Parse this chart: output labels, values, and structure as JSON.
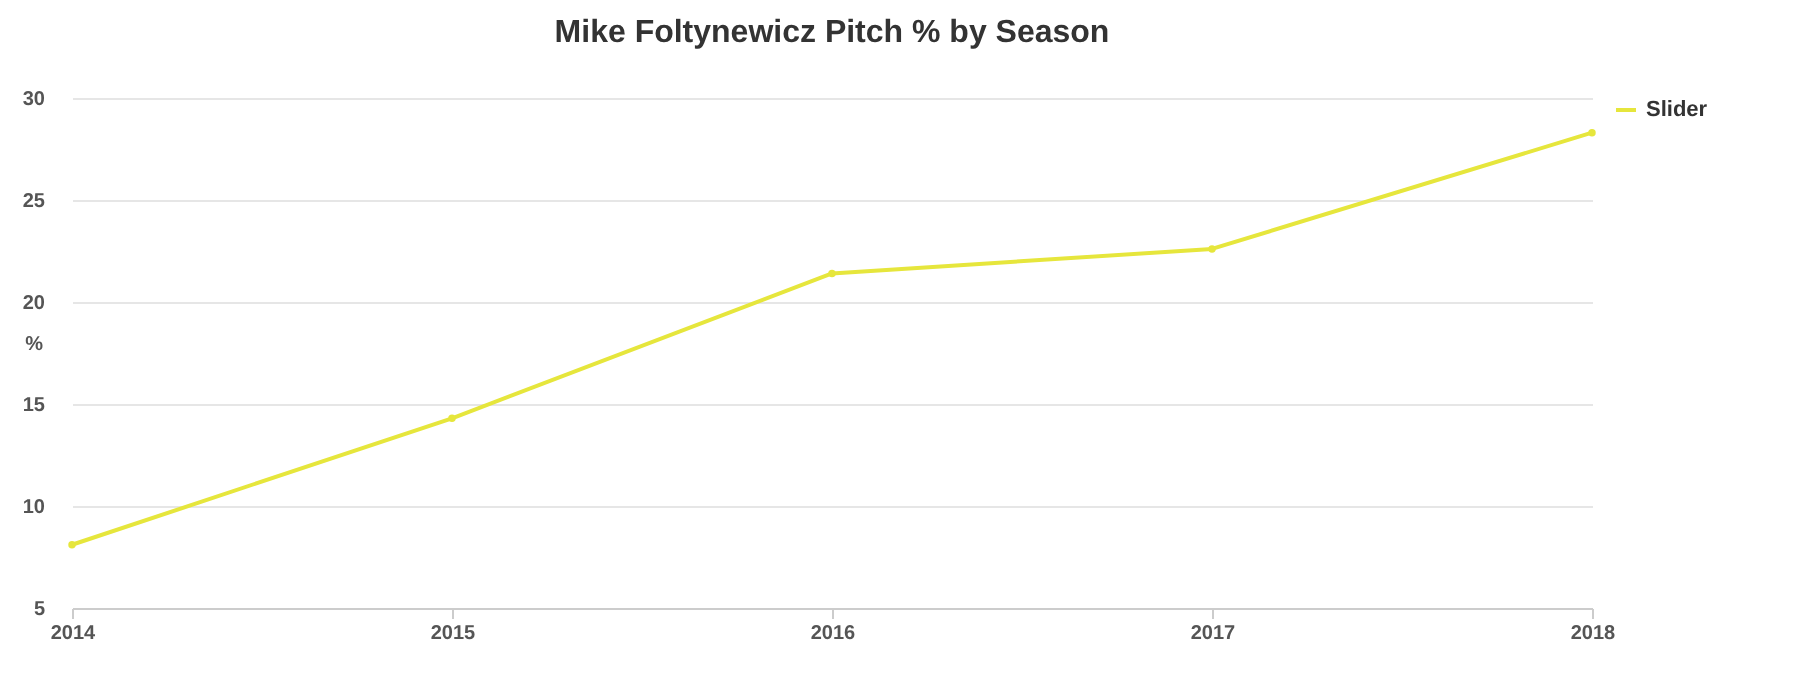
{
  "chart_data": {
    "type": "line",
    "title": "Mike Foltynewicz Pitch % by Season",
    "ylabel": "%",
    "categories": [
      "2014",
      "2015",
      "2016",
      "2017",
      "2018"
    ],
    "series": [
      {
        "name": "Slider",
        "color": "#e6e63c",
        "values": [
          8.1,
          14.3,
          21.4,
          22.6,
          28.3
        ]
      }
    ],
    "ylim": [
      5,
      30
    ],
    "yticks": [
      5,
      10,
      15,
      20,
      25,
      30
    ],
    "grid": "y",
    "legend": "right",
    "marker": "circle"
  }
}
